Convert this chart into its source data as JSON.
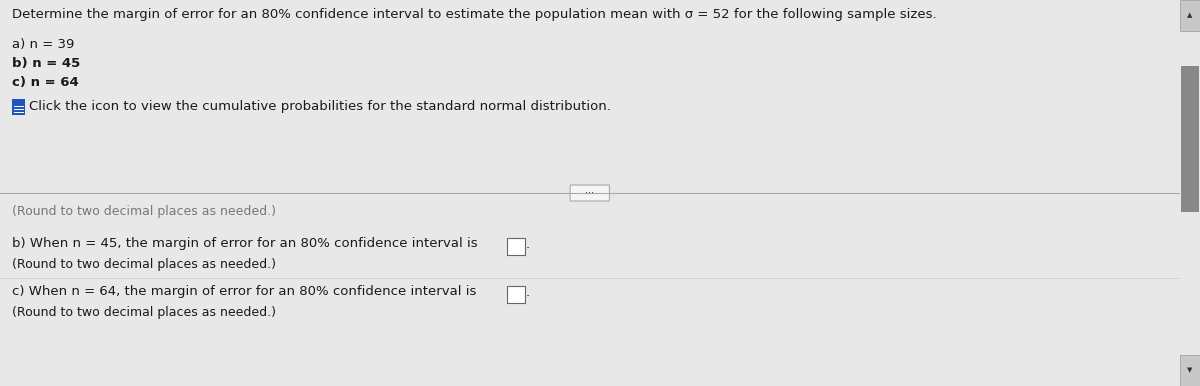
{
  "background_color": "#e8e8e8",
  "white_bg": "#f5f5f5",
  "title_text": "Determine the margin of error for an 80% confidence interval to estimate the population mean with σ = 52 for the following sample sizes.",
  "item_a": "a) n = 39",
  "item_b": "b) n = 45",
  "item_c": "c) n = 64",
  "click_text": "Click the icon to view the cumulative probabilities for the standard normal distribution.",
  "partial_text": "(Round to two decimal places as needed.)",
  "b_text": "b) When n = 45, the margin of error for an 80% confidence interval is",
  "b_sub": "(Round to two decimal places as needed.)",
  "c_text": "c) When n = 64, the margin of error for an 80% confidence interval is",
  "c_sub": "(Round to two decimal places as needed.)",
  "font_size_title": 9.5,
  "font_size_body": 9.5,
  "font_size_small": 9.0,
  "text_color": "#1a1a1a",
  "icon_blue": "#2255bb",
  "icon_blue2": "#4477cc",
  "scrollbar_bg": "#d0d0d0",
  "scrollbar_thumb": "#888888",
  "divider_color": "#aaaaaa",
  "box_edge": "#666666"
}
